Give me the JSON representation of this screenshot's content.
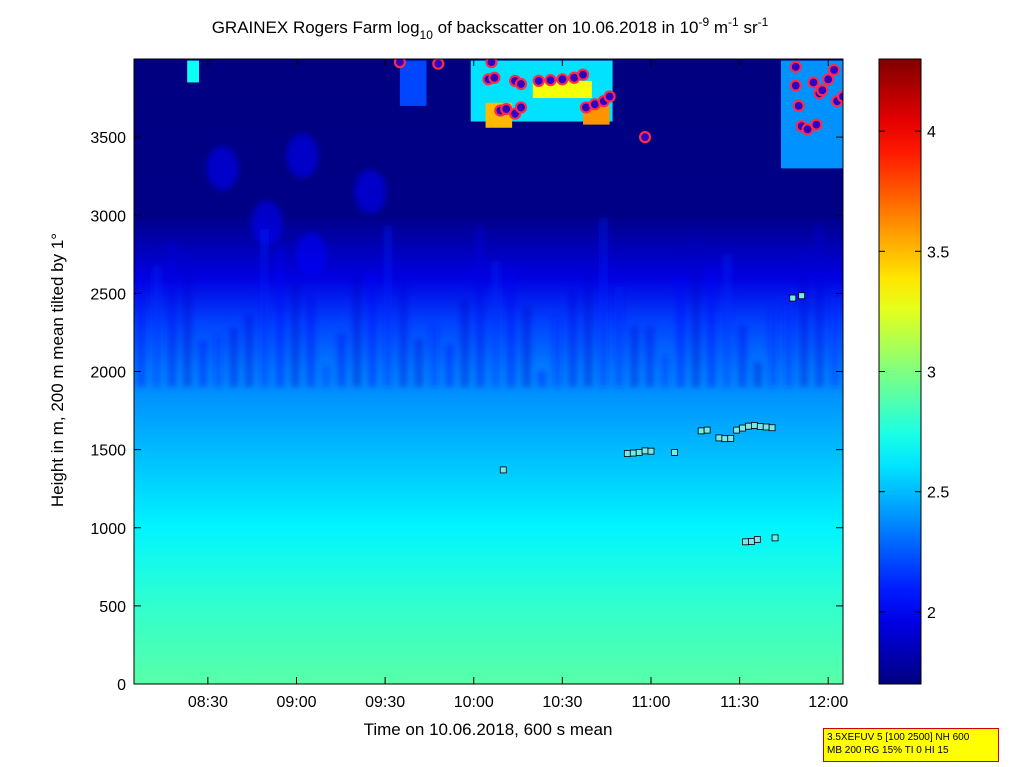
{
  "chart_data": {
    "type": "heatmap",
    "title_prefix": "GRAINEX Rogers Farm log",
    "title_sub": "10",
    "title_mid": " of backscatter on 10.06.2018 in 10",
    "title_exp1": "-9",
    "title_m": " m",
    "title_exp2": "-1",
    "title_sr": " sr",
    "title_exp3": "-1",
    "xlabel": "Time on 10.06.2018, 600 s mean",
    "ylabel": "Height in m, 200 m mean tilted by 1°",
    "xlim": [
      "08:05",
      "12:05"
    ],
    "ylim": [
      0,
      4000
    ],
    "xticks": [
      "08:30",
      "09:00",
      "09:30",
      "10:00",
      "10:30",
      "11:00",
      "11:30",
      "12:00"
    ],
    "yticks": [
      0,
      500,
      1000,
      1500,
      2000,
      2500,
      3000,
      3500
    ],
    "colorbar": {
      "min": 1.7,
      "max": 4.3,
      "ticks": [
        2,
        2.5,
        3,
        3.5,
        4
      ],
      "tick_labels": [
        "2",
        "2.5",
        "3",
        "3.5",
        "4"
      ],
      "colormap": "jet"
    },
    "rows": [
      {
        "h": 0,
        "v": 2.9
      },
      {
        "h": 500,
        "v": 2.8
      },
      {
        "h": 1000,
        "v": 2.65
      },
      {
        "h": 1500,
        "v": 2.5
      },
      {
        "h": 2000,
        "v": 2.35
      },
      {
        "h": 2300,
        "v": 2.2
      },
      {
        "h": 2600,
        "v": 1.95
      },
      {
        "h": 3000,
        "v": 1.72
      },
      {
        "h": 4000,
        "v": 1.7
      }
    ],
    "markers_square": [
      {
        "t": "10:10",
        "h": 1370
      },
      {
        "t": "10:52",
        "h": 1475
      },
      {
        "t": "10:54",
        "h": 1478
      },
      {
        "t": "10:56",
        "h": 1482
      },
      {
        "t": "10:58",
        "h": 1492
      },
      {
        "t": "11:00",
        "h": 1490
      },
      {
        "t": "11:08",
        "h": 1482
      },
      {
        "t": "11:17",
        "h": 1620
      },
      {
        "t": "11:19",
        "h": 1625
      },
      {
        "t": "11:23",
        "h": 1575
      },
      {
        "t": "11:25",
        "h": 1570
      },
      {
        "t": "11:27",
        "h": 1572
      },
      {
        "t": "11:29",
        "h": 1625
      },
      {
        "t": "11:31",
        "h": 1638
      },
      {
        "t": "11:33",
        "h": 1650
      },
      {
        "t": "11:35",
        "h": 1655
      },
      {
        "t": "11:37",
        "h": 1648
      },
      {
        "t": "11:39",
        "h": 1645
      },
      {
        "t": "11:41",
        "h": 1640
      },
      {
        "t": "11:32",
        "h": 910
      },
      {
        "t": "11:34",
        "h": 912
      },
      {
        "t": "11:36",
        "h": 925
      },
      {
        "t": "11:42",
        "h": 935
      },
      {
        "t": "11:48",
        "h": 2470
      },
      {
        "t": "11:51",
        "h": 2485
      }
    ],
    "markers_circle": [
      {
        "t": "09:35",
        "h": 3980
      },
      {
        "t": "09:48",
        "h": 3970
      },
      {
        "t": "10:06",
        "h": 3980
      },
      {
        "t": "10:05",
        "h": 3870
      },
      {
        "t": "10:07",
        "h": 3880
      },
      {
        "t": "10:09",
        "h": 3670
      },
      {
        "t": "10:11",
        "h": 3680
      },
      {
        "t": "10:14",
        "h": 3650
      },
      {
        "t": "10:16",
        "h": 3690
      },
      {
        "t": "10:14",
        "h": 3860
      },
      {
        "t": "10:16",
        "h": 3840
      },
      {
        "t": "10:22",
        "h": 3860
      },
      {
        "t": "10:26",
        "h": 3865
      },
      {
        "t": "10:30",
        "h": 3870
      },
      {
        "t": "10:34",
        "h": 3880
      },
      {
        "t": "10:37",
        "h": 3900
      },
      {
        "t": "10:38",
        "h": 3690
      },
      {
        "t": "10:41",
        "h": 3710
      },
      {
        "t": "10:44",
        "h": 3730
      },
      {
        "t": "10:46",
        "h": 3760
      },
      {
        "t": "10:58",
        "h": 3500
      },
      {
        "t": "11:49",
        "h": 3950
      },
      {
        "t": "11:49",
        "h": 3830
      },
      {
        "t": "11:50",
        "h": 3700
      },
      {
        "t": "11:51",
        "h": 3570
      },
      {
        "t": "11:53",
        "h": 3550
      },
      {
        "t": "11:55",
        "h": 3850
      },
      {
        "t": "11:56",
        "h": 3580
      },
      {
        "t": "11:57",
        "h": 3780
      },
      {
        "t": "11:58",
        "h": 3800
      },
      {
        "t": "12:00",
        "h": 3870
      },
      {
        "t": "12:02",
        "h": 3930
      },
      {
        "t": "12:03",
        "h": 3730
      },
      {
        "t": "12:05",
        "h": 3760
      }
    ]
  },
  "info_box": {
    "line1": "3.5XEFUV 5 [100 2500] NH 600",
    "line2": "MB 200 RG 15% TI 0 HI 15"
  }
}
